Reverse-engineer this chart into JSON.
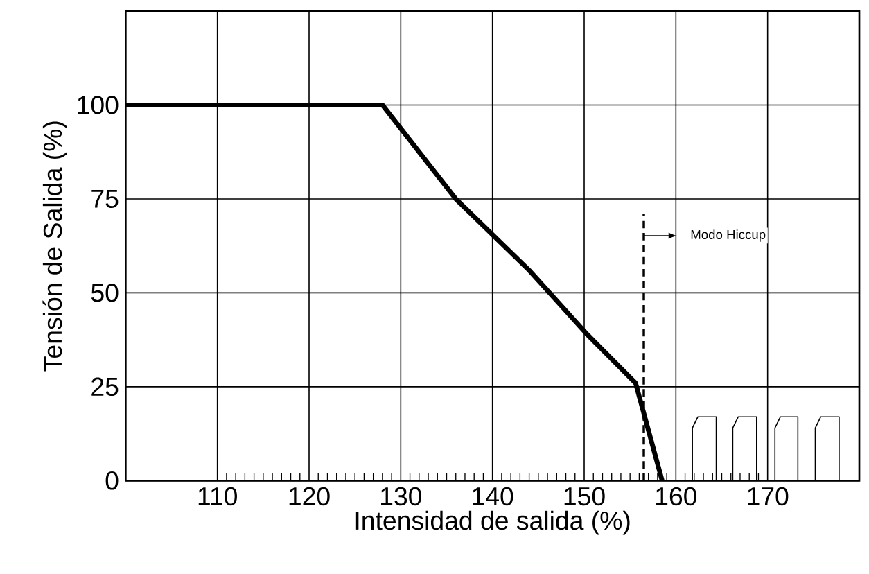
{
  "chart_data": {
    "type": "line",
    "xlabel": "Intensidad de salida (%)",
    "ylabel": "Tensión de Salida (%)",
    "xlim": [
      100,
      180
    ],
    "ylim": [
      0,
      125
    ],
    "xticks": [
      110,
      120,
      130,
      140,
      150,
      160,
      170
    ],
    "yticks": [
      0,
      25,
      50,
      75,
      100
    ],
    "grid": true,
    "marker": "none",
    "series": [
      {
        "color": "#000000",
        "line_style": "solid",
        "x": [
          100,
          128,
          136,
          144,
          150.3,
          155.6,
          158.5
        ],
        "values": [
          100,
          100,
          75,
          56,
          39,
          26,
          0
        ]
      },
      {
        "color": "#000000",
        "line_style": "solid",
        "x": [
          161.8,
          161.8,
          162.4,
          164.4,
          164.4,
          165,
          166.2,
          166.2,
          166.8,
          168.8,
          168.8,
          169.5,
          170.8,
          170.8,
          171.4,
          173.3,
          173.3,
          174,
          175.2,
          175.2,
          175.8,
          177.8,
          177.8
        ],
        "values": [
          0,
          14,
          17,
          17,
          0,
          null,
          0,
          14,
          17,
          17,
          0,
          null,
          0,
          14,
          17,
          17,
          0,
          null,
          0,
          14,
          17,
          17,
          0
        ]
      },
      {
        "color": "#000000",
        "line_style": "dashed",
        "x": [
          156.5,
          156.5
        ],
        "values": [
          0,
          71
        ]
      }
    ],
    "annotations": [
      "Modo Hiccup"
    ]
  }
}
